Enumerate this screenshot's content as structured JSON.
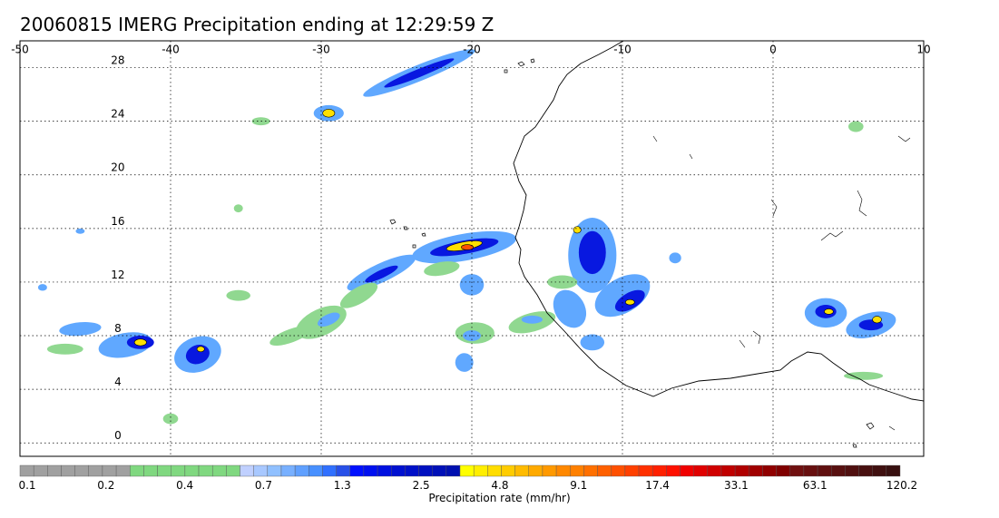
{
  "title": "20060815 IMERG Precipitation ending at 12:29:59 Z",
  "map": {
    "lon_range": [
      -50,
      10
    ],
    "lat_range": [
      -1,
      30
    ],
    "lon_ticks": [
      -50,
      -40,
      -30,
      -20,
      -10,
      0,
      10
    ],
    "lat_ticks": [
      0,
      4,
      8,
      12,
      16,
      20,
      24,
      28
    ],
    "lon_tick_labels": [
      "-50",
      "-40",
      "-30",
      "-20",
      "-10",
      "0",
      "10"
    ],
    "lat_tick_labels": [
      "0",
      "4",
      "8",
      "12",
      "16",
      "20",
      "24",
      "28"
    ],
    "gridlines": "dotted",
    "coastline_color": "#000000"
  },
  "colorbar": {
    "label": "Precipitation rate (mm/hr)",
    "tick_labels": [
      "0.1",
      "0.2",
      "0.4",
      "0.7",
      "1.3",
      "2.5",
      "4.8",
      "9.1",
      "17.4",
      "33.1",
      "63.1",
      "120.2"
    ],
    "colors": [
      "#a0a0a0",
      "#a0a0a0",
      "#a0a0a0",
      "#a0a0a0",
      "#a0a0a0",
      "#a0a0a0",
      "#a0a0a0",
      "#a0a0a0",
      "#80d880",
      "#80d880",
      "#80d880",
      "#80d880",
      "#80d880",
      "#80d880",
      "#80d880",
      "#80d880",
      "#c0d0ff",
      "#a8c8ff",
      "#90c0ff",
      "#78b0ff",
      "#60a0ff",
      "#4890ff",
      "#3070ff",
      "#2850e8",
      "#0010ff",
      "#0010f0",
      "#0010e0",
      "#0010d0",
      "#0010c8",
      "#0010c0",
      "#0010b8",
      "#0010b0",
      "#ffff00",
      "#ffee00",
      "#ffdd00",
      "#ffcc00",
      "#ffbb00",
      "#ffaa00",
      "#ff9900",
      "#ff8800",
      "#ff8000",
      "#ff7000",
      "#ff6000",
      "#ff5000",
      "#ff4000",
      "#ff3000",
      "#ff2000",
      "#ff1000",
      "#f00000",
      "#e00000",
      "#d00000",
      "#c00000",
      "#b00000",
      "#a00000",
      "#900000",
      "#800000",
      "#701010",
      "#681010",
      "#601010",
      "#581010",
      "#501010",
      "#481010",
      "#401010",
      "#381010"
    ]
  },
  "precip_cells": [
    {
      "lon": -23.5,
      "lat": 27.6,
      "ax": 4.0,
      "ay": 0.6,
      "rot": -22,
      "level": 2
    },
    {
      "lon": -23.5,
      "lat": 27.6,
      "ax": 2.5,
      "ay": 0.3,
      "rot": -22,
      "level": 3
    },
    {
      "lon": -29.5,
      "lat": 24.6,
      "ax": 1.0,
      "ay": 0.6,
      "rot": 0,
      "level": 2
    },
    {
      "lon": -29.5,
      "lat": 24.6,
      "ax": 0.4,
      "ay": 0.3,
      "rot": 0,
      "level": 4
    },
    {
      "lon": -20.5,
      "lat": 14.6,
      "ax": 3.5,
      "ay": 1.0,
      "rot": -10,
      "level": 2
    },
    {
      "lon": -20.5,
      "lat": 14.6,
      "ax": 2.3,
      "ay": 0.5,
      "rot": -10,
      "level": 3
    },
    {
      "lon": -20.5,
      "lat": 14.7,
      "ax": 1.2,
      "ay": 0.3,
      "rot": -10,
      "level": 4
    },
    {
      "lon": -20.3,
      "lat": 14.6,
      "ax": 0.4,
      "ay": 0.2,
      "rot": 0,
      "level": 5
    },
    {
      "lon": -26.0,
      "lat": 12.7,
      "ax": 2.5,
      "ay": 0.7,
      "rot": -25,
      "level": 2
    },
    {
      "lon": -26.0,
      "lat": 12.6,
      "ax": 1.2,
      "ay": 0.3,
      "rot": -25,
      "level": 3
    },
    {
      "lon": -12.0,
      "lat": 14.0,
      "ax": 1.6,
      "ay": 2.8,
      "rot": 0,
      "level": 2
    },
    {
      "lon": -12.0,
      "lat": 14.2,
      "ax": 0.9,
      "ay": 1.6,
      "rot": 0,
      "level": 3
    },
    {
      "lon": -13.0,
      "lat": 15.9,
      "ax": 0.25,
      "ay": 0.25,
      "rot": 0,
      "level": 4
    },
    {
      "lon": -10.0,
      "lat": 11.0,
      "ax": 2.0,
      "ay": 1.3,
      "rot": -30,
      "level": 2
    },
    {
      "lon": -9.5,
      "lat": 10.6,
      "ax": 1.1,
      "ay": 0.6,
      "rot": -30,
      "level": 3
    },
    {
      "lon": -9.5,
      "lat": 10.5,
      "ax": 0.3,
      "ay": 0.2,
      "rot": 0,
      "level": 4
    },
    {
      "lon": -13.5,
      "lat": 10.0,
      "ax": 1.0,
      "ay": 1.5,
      "rot": -30,
      "level": 2
    },
    {
      "lon": -12.0,
      "lat": 7.5,
      "ax": 0.8,
      "ay": 0.6,
      "rot": 0,
      "level": 2
    },
    {
      "lon": 3.5,
      "lat": 9.7,
      "ax": 1.4,
      "ay": 1.1,
      "rot": 0,
      "level": 2
    },
    {
      "lon": 3.5,
      "lat": 9.8,
      "ax": 0.7,
      "ay": 0.5,
      "rot": 0,
      "level": 3
    },
    {
      "lon": 3.7,
      "lat": 9.8,
      "ax": 0.3,
      "ay": 0.2,
      "rot": 0,
      "level": 4
    },
    {
      "lon": 6.5,
      "lat": 8.8,
      "ax": 1.7,
      "ay": 0.9,
      "rot": -15,
      "level": 2
    },
    {
      "lon": 6.5,
      "lat": 8.8,
      "ax": 0.8,
      "ay": 0.4,
      "rot": 0,
      "level": 3
    },
    {
      "lon": 6.9,
      "lat": 9.2,
      "ax": 0.3,
      "ay": 0.25,
      "rot": 0,
      "level": 4
    },
    {
      "lon": -43.0,
      "lat": 7.3,
      "ax": 1.8,
      "ay": 0.9,
      "rot": -10,
      "level": 2
    },
    {
      "lon": -42.0,
      "lat": 7.5,
      "ax": 0.9,
      "ay": 0.5,
      "rot": 0,
      "level": 3
    },
    {
      "lon": -42.0,
      "lat": 7.5,
      "ax": 0.4,
      "ay": 0.25,
      "rot": 0,
      "level": 4
    },
    {
      "lon": -38.2,
      "lat": 6.6,
      "ax": 1.6,
      "ay": 1.3,
      "rot": -20,
      "level": 2
    },
    {
      "lon": -38.2,
      "lat": 6.6,
      "ax": 0.8,
      "ay": 0.7,
      "rot": -20,
      "level": 3
    },
    {
      "lon": -38.0,
      "lat": 7.0,
      "ax": 0.25,
      "ay": 0.2,
      "rot": 0,
      "level": 4
    },
    {
      "lon": -46.0,
      "lat": 8.5,
      "ax": 1.4,
      "ay": 0.5,
      "rot": -5,
      "level": 2
    },
    {
      "lon": -47.0,
      "lat": 7.0,
      "ax": 1.2,
      "ay": 0.4,
      "rot": 0,
      "level": 1
    },
    {
      "lon": -30.0,
      "lat": 9.0,
      "ax": 1.8,
      "ay": 1.0,
      "rot": -25,
      "level": 1
    },
    {
      "lon": -29.5,
      "lat": 9.2,
      "ax": 0.8,
      "ay": 0.4,
      "rot": -25,
      "level": 2
    },
    {
      "lon": -32.0,
      "lat": 8.0,
      "ax": 1.5,
      "ay": 0.5,
      "rot": -20,
      "level": 1
    },
    {
      "lon": -19.8,
      "lat": 8.2,
      "ax": 1.3,
      "ay": 0.8,
      "rot": 0,
      "level": 1
    },
    {
      "lon": -20.0,
      "lat": 8.0,
      "ax": 0.6,
      "ay": 0.4,
      "rot": 0,
      "level": 2
    },
    {
      "lon": -20.0,
      "lat": 11.8,
      "ax": 0.8,
      "ay": 0.8,
      "rot": 0,
      "level": 2
    },
    {
      "lon": -16.0,
      "lat": 9.0,
      "ax": 1.6,
      "ay": 0.7,
      "rot": -15,
      "level": 1
    },
    {
      "lon": -16.0,
      "lat": 9.2,
      "ax": 0.7,
      "ay": 0.3,
      "rot": 0,
      "level": 2
    },
    {
      "lon": -20.5,
      "lat": 6.0,
      "ax": 0.6,
      "ay": 0.7,
      "rot": 0,
      "level": 2
    },
    {
      "lon": -14.0,
      "lat": 12.0,
      "ax": 1.0,
      "ay": 0.5,
      "rot": 0,
      "level": 1
    },
    {
      "lon": -22.0,
      "lat": 13.0,
      "ax": 1.2,
      "ay": 0.5,
      "rot": -10,
      "level": 1
    },
    {
      "lon": -27.5,
      "lat": 11.0,
      "ax": 1.4,
      "ay": 0.6,
      "rot": -30,
      "level": 1
    },
    {
      "lon": -35.5,
      "lat": 11.0,
      "ax": 0.8,
      "ay": 0.4,
      "rot": 0,
      "level": 1
    },
    {
      "lon": -6.5,
      "lat": 13.8,
      "ax": 0.4,
      "ay": 0.4,
      "rot": 0,
      "level": 2
    },
    {
      "lon": 5.5,
      "lat": 23.6,
      "ax": 0.5,
      "ay": 0.4,
      "rot": 0,
      "level": 1
    },
    {
      "lon": 6.0,
      "lat": 5.0,
      "ax": 1.3,
      "ay": 0.3,
      "rot": 0,
      "level": 1
    },
    {
      "lon": -40.0,
      "lat": 1.8,
      "ax": 0.5,
      "ay": 0.4,
      "rot": 0,
      "level": 1
    },
    {
      "lon": -35.5,
      "lat": 17.5,
      "ax": 0.3,
      "ay": 0.3,
      "rot": 0,
      "level": 1
    },
    {
      "lon": -46.0,
      "lat": 15.8,
      "ax": 0.3,
      "ay": 0.2,
      "rot": 0,
      "level": 2
    },
    {
      "lon": -48.5,
      "lat": 11.6,
      "ax": 0.3,
      "ay": 0.25,
      "rot": 0,
      "level": 2
    },
    {
      "lon": -34.0,
      "lat": 24.0,
      "ax": 0.6,
      "ay": 0.3,
      "rot": 0,
      "level": 1
    }
  ]
}
